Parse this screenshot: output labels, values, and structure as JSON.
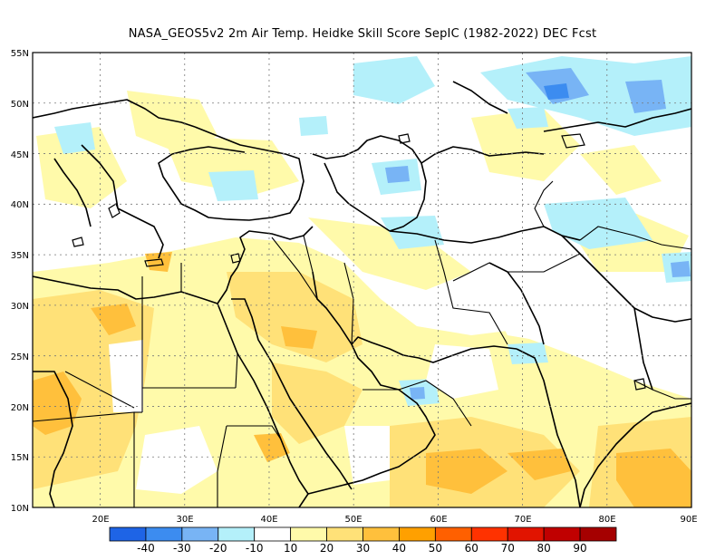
{
  "title": "NASA_GEOS5v2  2m Air Temp. Heidke Skill Score SepIC (1982-2022) DEC Fcst",
  "map": {
    "lon_range": [
      12,
      90
    ],
    "lat_range": [
      10,
      55
    ],
    "grid": "dotted",
    "lat_labels": [
      "55N",
      "50N",
      "45N",
      "40N",
      "35N",
      "30N",
      "25N",
      "20N",
      "15N",
      "10N"
    ],
    "lon_labels": [
      "20E",
      "30E",
      "40E",
      "50E",
      "60E",
      "70E",
      "80E",
      "90E"
    ],
    "lat_values": [
      55,
      50,
      45,
      40,
      35,
      30,
      25,
      20,
      15,
      10
    ],
    "lon_values": [
      20,
      30,
      40,
      50,
      60,
      70,
      80,
      90
    ]
  },
  "colorbar": {
    "colors": [
      "#1e64e6",
      "#3c8cf0",
      "#78b4f5",
      "#b4f0fa",
      "#ffffff",
      "#fffaaa",
      "#ffe178",
      "#ffc03c",
      "#ffa000",
      "#ff6000",
      "#ff3200",
      "#e11400",
      "#c00000",
      "#a50000"
    ],
    "labels": [
      "-40",
      "-30",
      "-20",
      "-10",
      "10",
      "20",
      "30",
      "40",
      "50",
      "60",
      "70",
      "80",
      "90"
    ]
  }
}
